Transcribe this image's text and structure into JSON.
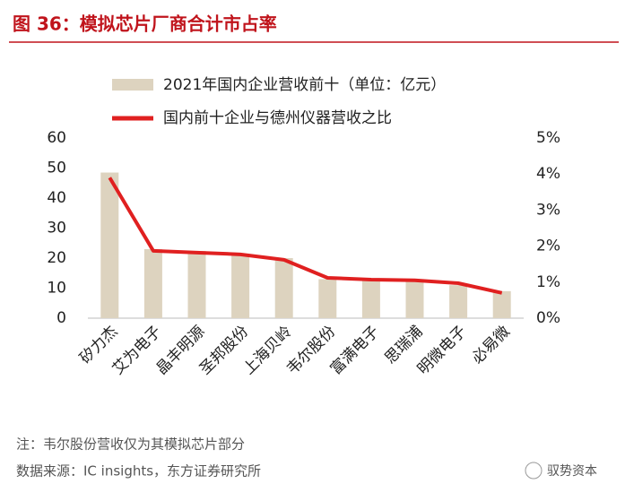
{
  "chart_data": {
    "type": "bar-line",
    "title": "图 36：模拟芯片厂商合计市占率",
    "categories": [
      "矽力杰",
      "艾为电子",
      "晶丰明源",
      "圣邦股份",
      "上海贝岭",
      "韦尔股份",
      "富满电子",
      "思瑞浦",
      "明微电子",
      "必易微"
    ],
    "series": [
      {
        "name": "2021年国内企业营收前十（单位：亿元）",
        "type": "bar",
        "color": "#ddd3bf",
        "values": [
          48.5,
          23,
          22.4,
          21.5,
          20,
          13,
          12.8,
          12.5,
          11,
          9
        ]
      },
      {
        "name": "国内前十企业与德州仪器营收之比",
        "type": "line",
        "axis": "y2",
        "color": "#e02020",
        "values": [
          3.9,
          1.87,
          1.82,
          1.77,
          1.62,
          1.12,
          1.07,
          1.05,
          0.97,
          0.7
        ]
      }
    ],
    "ylim": [
      0,
      60
    ],
    "yticks": [
      0,
      10,
      20,
      30,
      40,
      50,
      60
    ],
    "y2lim": [
      0,
      5
    ],
    "y2ticks": [
      {
        "value": 0,
        "label": "0%"
      },
      {
        "value": 1,
        "label": "1%"
      },
      {
        "value": 2,
        "label": "2%"
      },
      {
        "value": 3,
        "label": "3%"
      },
      {
        "value": 4,
        "label": "4%"
      },
      {
        "value": 5,
        "label": "5%"
      }
    ],
    "notes": [
      "注：韦尔股份营收仅为其模拟芯片部分",
      "数据来源：IC insights，东方证券研究所"
    ],
    "watermark": "驭势资本"
  }
}
